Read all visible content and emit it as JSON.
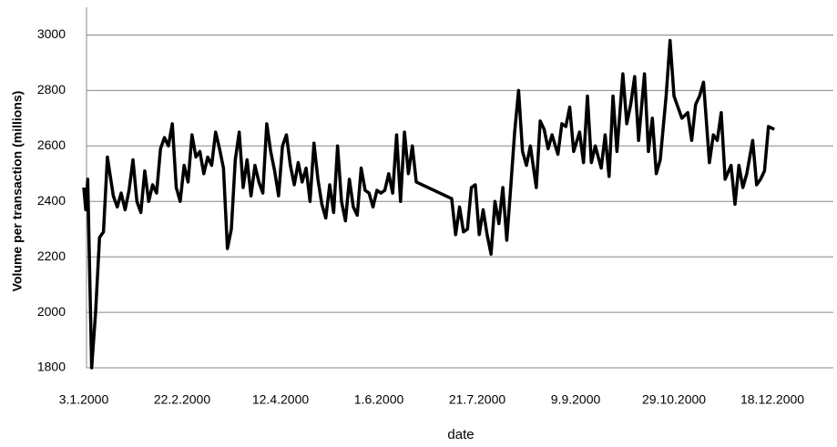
{
  "chart_data": {
    "type": "line",
    "x_label": "date",
    "y_label": "Volume per transaction (millions)",
    "x": [
      "3.1.2000",
      "4.1.2000",
      "5.1.2000",
      "7.1.2000",
      "9.1.2000",
      "11.1.2000",
      "13.1.2000",
      "15.1.2000",
      "18.1.2000",
      "20.1.2000",
      "22.1.2000",
      "24.1.2000",
      "26.1.2000",
      "28.1.2000",
      "30.1.2000",
      "1.2.2000",
      "3.2.2000",
      "5.2.2000",
      "7.2.2000",
      "9.2.2000",
      "11.2.2000",
      "13.2.2000",
      "15.2.2000",
      "17.2.2000",
      "19.2.2000",
      "21.2.2000",
      "23.2.2000",
      "25.2.2000",
      "27.2.2000",
      "29.2.2000",
      "2.3.2000",
      "4.3.2000",
      "6.3.2000",
      "8.3.2000",
      "10.3.2000",
      "12.3.2000",
      "14.3.2000",
      "16.3.2000",
      "18.3.2000",
      "20.3.2000",
      "22.3.2000",
      "24.3.2000",
      "26.3.2000",
      "28.3.2000",
      "30.3.2000",
      "1.4.2000",
      "3.4.2000",
      "5.4.2000",
      "7.4.2000",
      "9.4.2000",
      "11.4.2000",
      "13.4.2000",
      "15.4.2000",
      "17.4.2000",
      "19.4.2000",
      "21.4.2000",
      "23.4.2000",
      "25.4.2000",
      "27.4.2000",
      "29.4.2000",
      "1.5.2000",
      "3.5.2000",
      "5.5.2000",
      "7.5.2000",
      "9.5.2000",
      "11.5.2000",
      "13.5.2000",
      "15.5.2000",
      "17.5.2000",
      "19.5.2000",
      "21.5.2000",
      "23.5.2000",
      "25.5.2000",
      "27.5.2000",
      "29.5.2000",
      "31.5.2000",
      "2.6.2000",
      "4.6.2000",
      "6.6.2000",
      "8.6.2000",
      "10.6.2000",
      "12.6.2000",
      "14.6.2000",
      "16.6.2000",
      "18.6.2000",
      "20.6.2000",
      "8.7.2000",
      "10.7.2000",
      "12.7.2000",
      "14.7.2000",
      "16.7.2000",
      "18.7.2000",
      "20.7.2000",
      "22.7.2000",
      "24.7.2000",
      "26.7.2000",
      "28.7.2000",
      "30.7.2000",
      "1.8.2000",
      "3.8.2000",
      "5.8.2000",
      "7.8.2000",
      "9.8.2000",
      "11.8.2000",
      "13.8.2000",
      "15.8.2000",
      "17.8.2000",
      "20.8.2000",
      "22.8.2000",
      "24.8.2000",
      "26.8.2000",
      "28.8.2000",
      "31.8.2000",
      "2.9.2000",
      "4.9.2000",
      "6.9.2000",
      "8.9.2000",
      "11.9.2000",
      "13.9.2000",
      "15.9.2000",
      "17.9.2000",
      "19.9.2000",
      "22.9.2000",
      "24.9.2000",
      "26.9.2000",
      "28.9.2000",
      "30.9.2000",
      "3.10.2000",
      "5.10.2000",
      "7.10.2000",
      "9.10.2000",
      "11.10.2000",
      "14.10.2000",
      "16.10.2000",
      "18.10.2000",
      "20.10.2000",
      "22.10.2000",
      "25.10.2000",
      "27.10.2000",
      "29.10.2000",
      "31.10.2000",
      "2.11.2000",
      "5.11.2000",
      "7.11.2000",
      "9.11.2000",
      "11.11.2000",
      "13.11.2000",
      "16.11.2000",
      "18.11.2000",
      "20.11.2000",
      "22.11.2000",
      "24.11.2000",
      "27.11.2000",
      "29.11.2000",
      "1.12.2000",
      "3.12.2000",
      "5.12.2000",
      "8.12.2000",
      "10.12.2000",
      "12.12.2000",
      "14.12.2000",
      "16.12.2000",
      "19.12.2000"
    ],
    "series": [
      {
        "color": "#000000",
        "values": [
          2450,
          2370,
          2480,
          1800,
          2000,
          2270,
          2290,
          2560,
          2420,
          2380,
          2430,
          2370,
          2440,
          2550,
          2400,
          2360,
          2510,
          2400,
          2460,
          2430,
          2590,
          2630,
          2600,
          2680,
          2450,
          2400,
          2530,
          2470,
          2640,
          2560,
          2580,
          2500,
          2560,
          2530,
          2650,
          2590,
          2520,
          2230,
          2300,
          2550,
          2650,
          2450,
          2550,
          2420,
          2530,
          2470,
          2430,
          2680,
          2580,
          2510,
          2420,
          2600,
          2640,
          2530,
          2460,
          2540,
          2470,
          2520,
          2400,
          2610,
          2480,
          2390,
          2340,
          2460,
          2360,
          2600,
          2400,
          2330,
          2480,
          2380,
          2350,
          2520,
          2440,
          2430,
          2380,
          2440,
          2430,
          2440,
          2500,
          2430,
          2640,
          2400,
          2650,
          2500,
          2600,
          2470,
          2410,
          2280,
          2380,
          2290,
          2300,
          2450,
          2460,
          2280,
          2370,
          2280,
          2210,
          2400,
          2320,
          2450,
          2260,
          2450,
          2650,
          2800,
          2580,
          2530,
          2600,
          2450,
          2690,
          2660,
          2590,
          2640,
          2570,
          2680,
          2670,
          2740,
          2580,
          2650,
          2540,
          2780,
          2540,
          2600,
          2520,
          2640,
          2490,
          2780,
          2580,
          2860,
          2680,
          2750,
          2850,
          2620,
          2860,
          2580,
          2700,
          2500,
          2550,
          2780,
          2980,
          2780,
          2740,
          2700,
          2720,
          2620,
          2750,
          2780,
          2830,
          2540,
          2640,
          2620,
          2720,
          2480,
          2530,
          2390,
          2530,
          2450,
          2500,
          2620,
          2460,
          2480,
          2510,
          2670,
          2660
        ]
      }
    ],
    "xlim": [
      "3.1.2000",
      "18.1.2001"
    ],
    "xticks": [
      "3.1.2000",
      "22.2.2000",
      "12.4.2000",
      "1.6.2000",
      "21.7.2000",
      "9.9.2000",
      "29.10.2000",
      "18.12.2000"
    ],
    "ylim": [
      1800,
      3100
    ],
    "yticks": [
      1800,
      2000,
      2200,
      2400,
      2600,
      2800,
      3000
    ],
    "grid": true
  }
}
